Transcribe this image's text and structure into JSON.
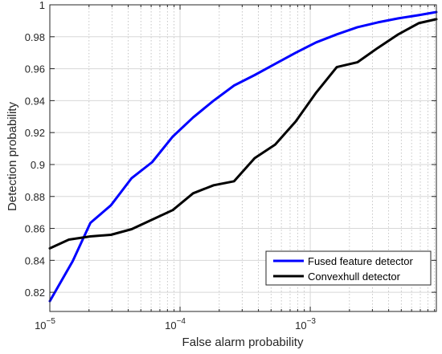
{
  "chart_data": {
    "type": "line",
    "title": "",
    "xlabel": "False alarm probability",
    "ylabel": "Detection probability",
    "xscale": "log",
    "xlim": [
      1e-05,
      0.0093
    ],
    "ylim": [
      0.808,
      1.0
    ],
    "grid": true,
    "legend_position": "bottom-right",
    "x_ticks": [
      {
        "value": 1e-05,
        "base": "10",
        "exp": "−5"
      },
      {
        "value": 0.0001,
        "base": "10",
        "exp": "−4"
      },
      {
        "value": 0.001,
        "base": "10",
        "exp": "−3"
      }
    ],
    "y_ticks": [
      {
        "value": 0.82,
        "label": "0.82"
      },
      {
        "value": 0.84,
        "label": "0.84"
      },
      {
        "value": 0.86,
        "label": "0.86"
      },
      {
        "value": 0.88,
        "label": "0.88"
      },
      {
        "value": 0.9,
        "label": "0.9"
      },
      {
        "value": 0.92,
        "label": "0.92"
      },
      {
        "value": 0.94,
        "label": "0.94"
      },
      {
        "value": 0.96,
        "label": "0.96"
      },
      {
        "value": 0.98,
        "label": "0.98"
      },
      {
        "value": 1.0,
        "label": "1"
      }
    ],
    "series": [
      {
        "name": "Fused feature detector",
        "color": "#0000ff",
        "x": [
          1e-05,
          1.5e-05,
          2.05e-05,
          2.95e-05,
          4.25e-05,
          6.1e-05,
          8.8e-05,
          0.000126,
          0.000181,
          0.00026,
          0.000374,
          0.000538,
          0.000773,
          0.00111,
          0.0016,
          0.0023,
          0.0033,
          0.00474,
          0.0068,
          0.0093
        ],
        "y": [
          0.8145,
          0.8395,
          0.8635,
          0.8745,
          0.8915,
          0.9015,
          0.9175,
          0.9295,
          0.94,
          0.9495,
          0.956,
          0.963,
          0.97,
          0.9765,
          0.9815,
          0.986,
          0.989,
          0.9915,
          0.9935,
          0.9955
        ]
      },
      {
        "name": "Convexhull detector",
        "color": "#000000",
        "x": [
          1e-05,
          1.4e-05,
          2.05e-05,
          2.95e-05,
          4.25e-05,
          6.1e-05,
          8.8e-05,
          0.000126,
          0.000181,
          0.00026,
          0.000374,
          0.000538,
          0.000773,
          0.00111,
          0.0016,
          0.0023,
          0.0033,
          0.00474,
          0.0068,
          0.0093
        ],
        "y": [
          0.8475,
          0.853,
          0.855,
          0.856,
          0.8595,
          0.8655,
          0.8715,
          0.882,
          0.887,
          0.8895,
          0.904,
          0.9125,
          0.927,
          0.945,
          0.961,
          0.964,
          0.973,
          0.9815,
          0.9885,
          0.991
        ]
      }
    ]
  }
}
